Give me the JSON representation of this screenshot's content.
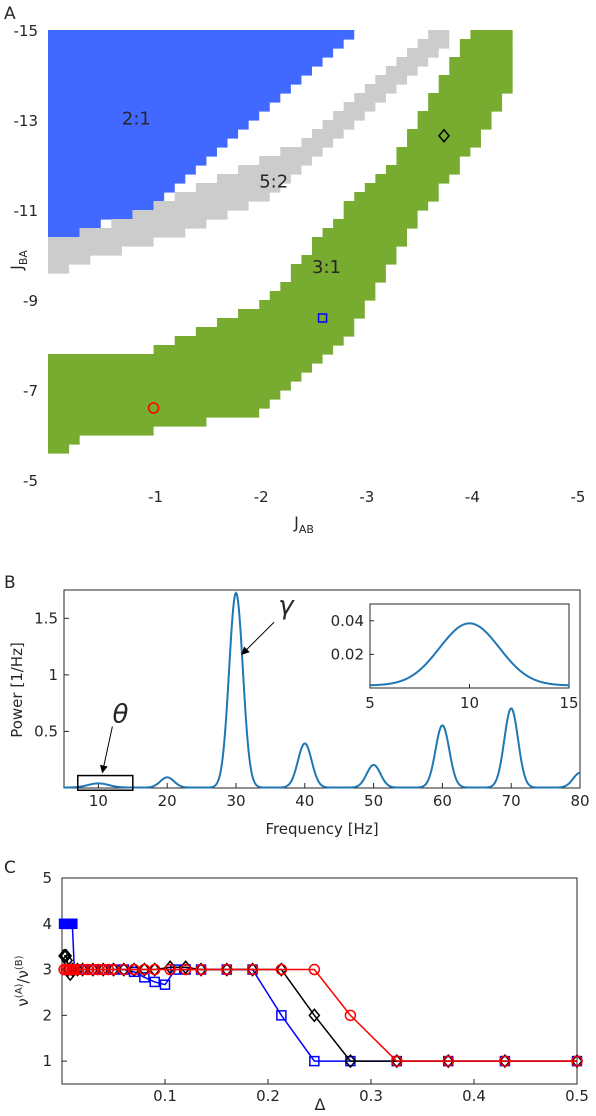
{
  "colors": {
    "blue_region": "#4169ff",
    "gray_region": "#cccccc",
    "green_region": "#77ac30",
    "spectrum_line": "#1f77b4",
    "marker_red": "#ff0000",
    "marker_blue": "#0000ff",
    "marker_black": "#000000",
    "axis": "#262626"
  },
  "chart_data": [
    {
      "panel_label": "A",
      "type": "heatmap",
      "xlabel_main": "J",
      "xlabel_sub": "AB",
      "ylabel_main": "J",
      "ylabel_sub": "BA",
      "xlim": [
        0,
        -5
      ],
      "ylim": [
        -5,
        -15
      ],
      "xticks": [
        -1,
        -2,
        -3,
        -4,
        -5
      ],
      "yticks": [
        -5,
        -7,
        -9,
        -11,
        -13,
        -15
      ],
      "xtick_labels": [
        "-1",
        "-2",
        "-3",
        "-4",
        "-5"
      ],
      "ytick_labels": [
        "-5",
        "-7",
        "-9",
        "-11",
        "-13",
        "-15"
      ],
      "cell_size": 0.1,
      "regions": [
        {
          "name": "2:1",
          "color_key": "blue_region",
          "label_at": [
            -0.7,
            -12.9
          ],
          "runs": [
            [
              -14.9,
              0.0,
              -2.9
            ],
            [
              -14.7,
              0.0,
              -2.8
            ],
            [
              -14.5,
              0.0,
              -2.7
            ],
            [
              -14.3,
              0.0,
              -2.6
            ],
            [
              -14.1,
              0.0,
              -2.5
            ],
            [
              -13.9,
              0.0,
              -2.4
            ],
            [
              -13.7,
              0.0,
              -2.3
            ],
            [
              -13.5,
              0.0,
              -2.2
            ],
            [
              -13.3,
              0.0,
              -2.1
            ],
            [
              -13.1,
              0.0,
              -2.0
            ],
            [
              -12.9,
              0.0,
              -1.9
            ],
            [
              -12.7,
              0.0,
              -1.8
            ],
            [
              -12.5,
              0.0,
              -1.7
            ],
            [
              -12.3,
              0.0,
              -1.6
            ],
            [
              -12.1,
              0.0,
              -1.5
            ],
            [
              -11.9,
              0.0,
              -1.4
            ],
            [
              -11.7,
              0.0,
              -1.3
            ],
            [
              -11.5,
              0.0,
              -1.2
            ],
            [
              -11.3,
              0.0,
              -1.1
            ],
            [
              -11.1,
              0.0,
              -1.0
            ],
            [
              -10.9,
              0.0,
              -0.9
            ],
            [
              -10.7,
              0.0,
              -0.5
            ],
            [
              -10.5,
              0.0,
              -0.3
            ]
          ]
        },
        {
          "name": "5:2",
          "color_key": "gray_region",
          "label_at": [
            -2.0,
            -11.5
          ],
          "runs": [
            [
              -14.9,
              -3.6,
              -3.8
            ],
            [
              -14.7,
              -3.5,
              -3.8
            ],
            [
              -14.5,
              -3.4,
              -3.7
            ],
            [
              -14.3,
              -3.3,
              -3.6
            ],
            [
              -14.1,
              -3.2,
              -3.5
            ],
            [
              -13.9,
              -3.1,
              -3.4
            ],
            [
              -13.7,
              -3.0,
              -3.3
            ],
            [
              -13.5,
              -2.9,
              -3.2
            ],
            [
              -13.3,
              -2.8,
              -3.1
            ],
            [
              -13.1,
              -2.7,
              -3.0
            ],
            [
              -12.9,
              -2.6,
              -2.9
            ],
            [
              -12.7,
              -2.5,
              -2.8
            ],
            [
              -12.5,
              -2.4,
              -2.7
            ],
            [
              -12.3,
              -2.2,
              -2.6
            ],
            [
              -12.1,
              -2.0,
              -2.5
            ],
            [
              -11.9,
              -1.8,
              -2.4
            ],
            [
              -11.7,
              -1.6,
              -2.3
            ],
            [
              -11.5,
              -1.4,
              -2.2
            ],
            [
              -11.3,
              -1.2,
              -2.1
            ],
            [
              -11.1,
              -1.0,
              -1.9
            ],
            [
              -10.9,
              -0.8,
              -1.7
            ],
            [
              -10.7,
              -0.6,
              -1.5
            ],
            [
              -10.5,
              -0.3,
              -1.3
            ],
            [
              -10.3,
              0.0,
              -1.0
            ],
            [
              -10.1,
              0.0,
              -0.7
            ],
            [
              -9.9,
              0.0,
              -0.4
            ],
            [
              -9.7,
              0.0,
              -0.2
            ]
          ]
        },
        {
          "name": "3:1",
          "color_key": "green_region",
          "label_at": [
            -2.5,
            -9.6
          ],
          "runs": [
            [
              -14.9,
              -4.0,
              -4.4
            ],
            [
              -14.7,
              -3.9,
              -4.4
            ],
            [
              -14.5,
              -3.9,
              -4.4
            ],
            [
              -14.3,
              -3.8,
              -4.4
            ],
            [
              -14.1,
              -3.8,
              -4.4
            ],
            [
              -13.9,
              -3.7,
              -4.4
            ],
            [
              -13.7,
              -3.7,
              -4.4
            ],
            [
              -13.5,
              -3.6,
              -4.3
            ],
            [
              -13.3,
              -3.6,
              -4.3
            ],
            [
              -13.1,
              -3.5,
              -4.2
            ],
            [
              -12.9,
              -3.5,
              -4.2
            ],
            [
              -12.7,
              -3.4,
              -4.1
            ],
            [
              -12.5,
              -3.4,
              -4.1
            ],
            [
              -12.3,
              -3.3,
              -4.0
            ],
            [
              -12.1,
              -3.3,
              -3.9
            ],
            [
              -11.9,
              -3.2,
              -3.9
            ],
            [
              -11.7,
              -3.1,
              -3.8
            ],
            [
              -11.5,
              -3.0,
              -3.7
            ],
            [
              -11.3,
              -2.9,
              -3.7
            ],
            [
              -11.1,
              -2.8,
              -3.6
            ],
            [
              -10.9,
              -2.8,
              -3.5
            ],
            [
              -10.7,
              -2.7,
              -3.5
            ],
            [
              -10.5,
              -2.6,
              -3.4
            ],
            [
              -10.3,
              -2.5,
              -3.4
            ],
            [
              -10.1,
              -2.5,
              -3.3
            ],
            [
              -9.9,
              -2.4,
              -3.3
            ],
            [
              -9.7,
              -2.3,
              -3.2
            ],
            [
              -9.5,
              -2.3,
              -3.2
            ],
            [
              -9.3,
              -2.2,
              -3.1
            ],
            [
              -9.1,
              -2.1,
              -3.1
            ],
            [
              -8.9,
              -2.0,
              -3.0
            ],
            [
              -8.7,
              -1.8,
              -3.0
            ],
            [
              -8.5,
              -1.6,
              -2.9
            ],
            [
              -8.3,
              -1.4,
              -2.9
            ],
            [
              -8.1,
              -1.2,
              -2.8
            ],
            [
              -7.9,
              -1.0,
              -2.7
            ],
            [
              -7.7,
              0.0,
              -2.6
            ],
            [
              -7.5,
              0.0,
              -2.5
            ],
            [
              -7.3,
              0.0,
              -2.4
            ],
            [
              -7.1,
              0.0,
              -2.3
            ],
            [
              -6.9,
              0.0,
              -2.2
            ],
            [
              -6.7,
              0.0,
              -2.1
            ],
            [
              -6.5,
              0.0,
              -2.0
            ],
            [
              -6.3,
              0.0,
              -1.5
            ],
            [
              -6.1,
              0.0,
              -1.0
            ],
            [
              -5.9,
              0.0,
              -0.3
            ],
            [
              -5.7,
              0.0,
              -0.2
            ]
          ]
        }
      ],
      "markers": [
        {
          "shape": "circle",
          "color_key": "marker_red",
          "x": -1.0,
          "y": -6.6
        },
        {
          "shape": "square",
          "color_key": "marker_blue",
          "x": -2.6,
          "y": -8.6
        },
        {
          "shape": "diamond",
          "color_key": "marker_black",
          "x": -3.75,
          "y": -12.65
        }
      ]
    },
    {
      "panel_label": "B",
      "type": "line",
      "xlabel": "Frequency [Hz]",
      "ylabel": "Power [1/Hz]",
      "xlim": [
        5,
        80
      ],
      "ylim": [
        0,
        1.75
      ],
      "xticks": [
        10,
        20,
        30,
        40,
        50,
        60,
        70,
        80
      ],
      "yticks": [
        0.5,
        1,
        1.5
      ],
      "ytick_labels": [
        "0.5",
        "1",
        "1.5"
      ],
      "peaks": [
        {
          "x": 10,
          "y": 0.037,
          "width": 1.5
        },
        {
          "x": 20,
          "y": 0.09,
          "width": 1.0
        },
        {
          "x": 30,
          "y": 1.72,
          "width": 1.0
        },
        {
          "x": 40,
          "y": 0.39,
          "width": 1.0
        },
        {
          "x": 50,
          "y": 0.2,
          "width": 1.0
        },
        {
          "x": 60,
          "y": 0.55,
          "width": 1.0
        },
        {
          "x": 70,
          "y": 0.7,
          "width": 1.0
        },
        {
          "x": 80,
          "y": 0.13,
          "width": 1.0
        }
      ],
      "annotations": [
        {
          "text": "γ",
          "target_x": 30,
          "target_y": 1.2
        },
        {
          "text": "θ",
          "target_x": 10,
          "target_y": 0.12
        }
      ],
      "highlight_box": {
        "x0": 7,
        "x1": 15,
        "y0": -0.02,
        "y1": 0.11
      },
      "inset": {
        "xlim": [
          5,
          15
        ],
        "ylim": [
          0,
          0.05
        ],
        "xticks": [
          5,
          10,
          15
        ],
        "yticks": [
          0.02,
          0.04
        ],
        "ytick_labels": [
          "0.02",
          "0.04"
        ]
      }
    },
    {
      "panel_label": "C",
      "type": "line",
      "xlabel": "Δ",
      "ylabel_parts": [
        "ν",
        "(A)",
        "/ν",
        "(B)"
      ],
      "xlim": [
        0,
        0.5
      ],
      "ylim": [
        0.5,
        5
      ],
      "xticks": [
        0.1,
        0.2,
        0.3,
        0.4,
        0.5
      ],
      "xtick_labels": [
        "0.1",
        "0.2",
        "0.3",
        "0.4",
        "0.5"
      ],
      "yticks": [
        1,
        2,
        3,
        4,
        5
      ],
      "series": [
        {
          "color_key": "marker_blue",
          "marker": "square",
          "x": [
            0.002,
            0.003,
            0.004,
            0.005,
            0.006,
            0.007,
            0.008,
            0.009,
            0.01,
            0.012,
            0.015,
            0.02,
            0.03,
            0.04,
            0.05,
            0.06,
            0.07,
            0.08,
            0.09,
            0.1,
            0.11,
            0.12,
            0.135,
            0.16,
            0.185,
            0.213,
            0.245,
            0.28,
            0.325,
            0.375,
            0.43,
            0.5
          ],
          "y": [
            4.0,
            4.0,
            4.0,
            4.0,
            4.0,
            4.0,
            4.0,
            4.0,
            4.0,
            3.0,
            3.0,
            3.0,
            3.0,
            3.0,
            3.0,
            3.0,
            2.95,
            2.83,
            2.73,
            2.67,
            3.0,
            3.0,
            3.0,
            3.0,
            3.0,
            2.0,
            1.0,
            1.0,
            1.0,
            1.0,
            1.0,
            1.0
          ]
        },
        {
          "color_key": "marker_black",
          "marker": "diamond",
          "x": [
            0.002,
            0.003,
            0.004,
            0.005,
            0.006,
            0.008,
            0.01,
            0.015,
            0.02,
            0.03,
            0.04,
            0.05,
            0.06,
            0.07,
            0.08,
            0.09,
            0.105,
            0.12,
            0.135,
            0.16,
            0.185,
            0.213,
            0.245,
            0.28,
            0.325,
            0.375,
            0.43,
            0.5
          ],
          "y": [
            3.3,
            3.3,
            3.3,
            3.2,
            3.0,
            2.9,
            3.0,
            3.0,
            3.0,
            3.0,
            3.0,
            3.0,
            3.0,
            3.0,
            3.0,
            3.0,
            3.05,
            3.05,
            3.0,
            3.0,
            3.0,
            3.0,
            2.0,
            1.0,
            1.0,
            1.0,
            1.0,
            1.0
          ]
        },
        {
          "color_key": "marker_red",
          "marker": "circle",
          "x": [
            0.002,
            0.004,
            0.006,
            0.008,
            0.01,
            0.012,
            0.015,
            0.02,
            0.025,
            0.03,
            0.035,
            0.04,
            0.045,
            0.05,
            0.06,
            0.07,
            0.08,
            0.09,
            0.105,
            0.12,
            0.135,
            0.16,
            0.185,
            0.213,
            0.245,
            0.28,
            0.325,
            0.375,
            0.43,
            0.5
          ],
          "y": [
            3.0,
            3.0,
            3.0,
            3.0,
            3.0,
            3.0,
            3.0,
            3.0,
            3.0,
            3.0,
            3.0,
            3.0,
            3.0,
            3.0,
            3.0,
            3.0,
            3.0,
            3.0,
            3.0,
            3.0,
            3.0,
            3.0,
            3.0,
            3.0,
            3.0,
            2.0,
            1.0,
            1.0,
            1.0,
            1.0
          ]
        }
      ]
    }
  ]
}
